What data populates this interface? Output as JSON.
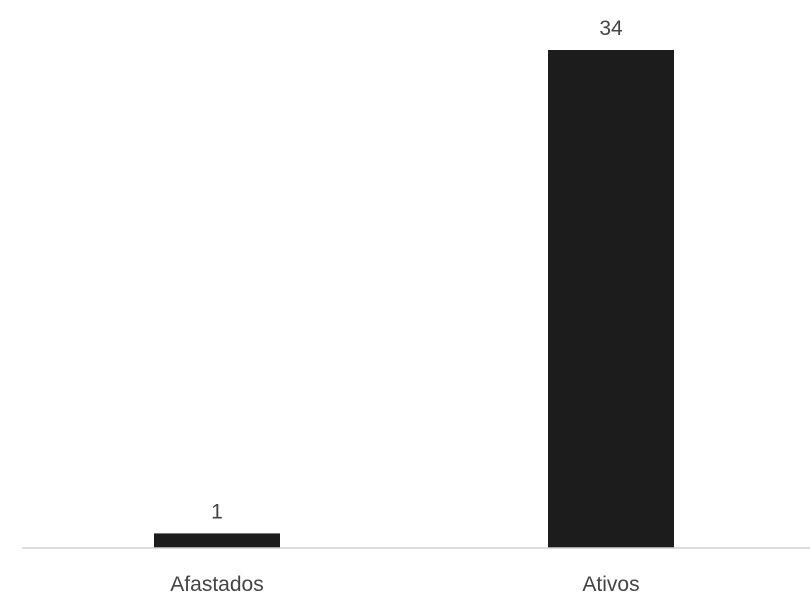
{
  "chart_data": {
    "type": "bar",
    "title": "",
    "xlabel": "",
    "ylabel": "",
    "categories": [
      "Afastados",
      "Ativos"
    ],
    "values": [
      1,
      34
    ],
    "ylim": [
      0,
      34
    ],
    "grid": false,
    "show_data_labels": true,
    "colors": {
      "bar": "#1c1c1c",
      "axis": "#d0d0d0",
      "text": "#444444"
    }
  }
}
